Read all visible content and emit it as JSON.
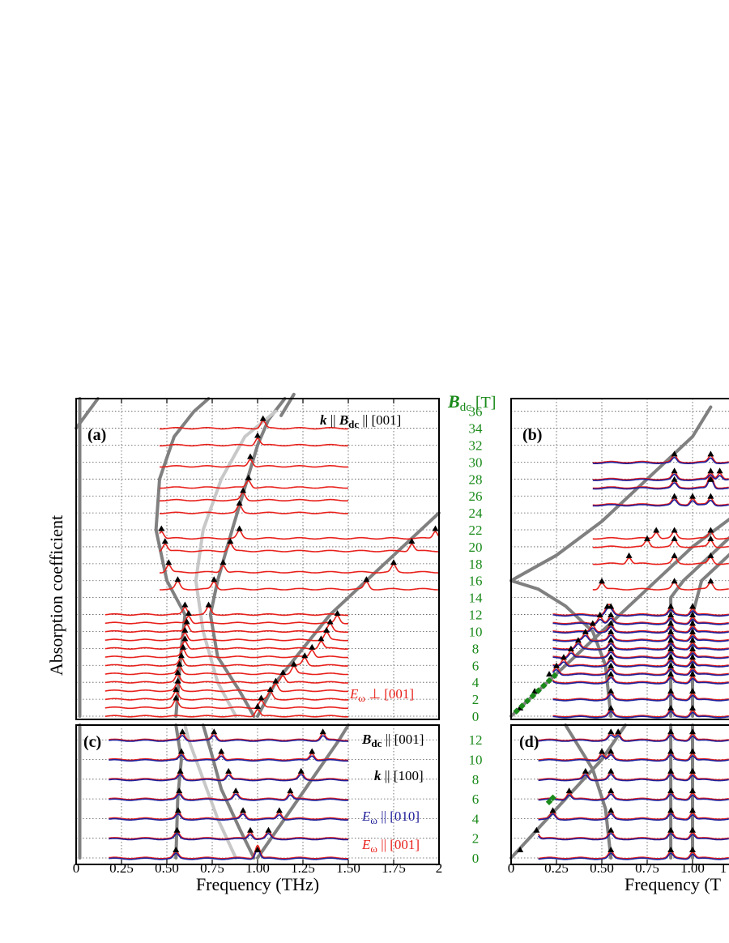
{
  "chart_data": [
    {
      "panel": "(a)",
      "type": "line",
      "annotations": {
        "top_right_k": "k",
        "top_right_mid": " || ",
        "top_right_B": "B",
        "top_right_sub": "dc",
        "top_right_dir": " || [001]",
        "bottom_E": "E",
        "bottom_sub": "ω",
        "bottom_dir": " ⊥ [001]"
      },
      "offsets_T": [
        0,
        1,
        2,
        3,
        4,
        5,
        6,
        7,
        8,
        9,
        10,
        11,
        12,
        15,
        17,
        19.5,
        21,
        24,
        25.5,
        27,
        29.5,
        32,
        34
      ],
      "peaks_THz": [
        [
          1.0
        ],
        [
          0.55,
          1.02
        ],
        [
          0.55,
          1.07
        ],
        [
          0.56,
          1.1
        ],
        [
          0.56,
          1.14
        ],
        [
          0.57,
          1.2
        ],
        [
          0.58,
          1.26
        ],
        [
          0.59,
          1.3
        ],
        [
          0.6,
          1.35
        ],
        [
          0.6,
          1.38
        ],
        [
          0.61,
          1.4
        ],
        [
          0.62,
          1.44
        ],
        [
          0.6,
          0.73
        ],
        [
          0.56,
          0.76,
          1.6
        ],
        [
          0.51,
          0.81,
          1.75
        ],
        [
          0.49,
          0.85,
          1.85
        ],
        [
          0.47,
          0.9,
          1.98
        ],
        [
          0.9
        ],
        [
          0.92
        ],
        [
          0.95
        ],
        [
          0.96
        ],
        [
          1.0
        ],
        [
          1.03
        ]
      ],
      "xlim": [
        0,
        2
      ]
    },
    {
      "panel": "(b)",
      "type": "line",
      "offsets_T": [
        0,
        2,
        4,
        5,
        6,
        7,
        8,
        9,
        10,
        11,
        12,
        15,
        18,
        20,
        21,
        25,
        27,
        28,
        30
      ],
      "xlim": [
        0,
        1.25
      ]
    },
    {
      "panel": "(c)",
      "type": "line",
      "annotations": {
        "line1_B": "B",
        "line1_sub": "dc",
        "line1_dir": " || [001]",
        "line2_k": "k",
        "line2_dir": "  || [100]",
        "line3_E": "E",
        "line3_sub": "ω",
        "line3_dir": " || [010]",
        "line4_E": "E",
        "line4_sub": "ω",
        "line4_dir": " || [001]"
      },
      "offsets_T": [
        0,
        2,
        4,
        6,
        8,
        10,
        12
      ],
      "xlim": [
        0,
        2
      ]
    },
    {
      "panel": "(d)",
      "type": "line",
      "offsets_T": [
        0,
        2,
        4,
        6,
        8,
        10,
        12
      ],
      "xlim": [
        0,
        1.25
      ]
    }
  ],
  "labels": {
    "panel_a": "(a)",
    "panel_b": "(b)",
    "panel_c": "(c)",
    "panel_d": "(d)",
    "ylabel": "Absorption coefficient",
    "xlabel_left": "Frequency (THz)",
    "xlabel_right": "Frequency (T",
    "bdc_B": "B",
    "bdc_sub": "dc",
    "bdc_unit": " [T]"
  },
  "x_ticks_left": [
    "0",
    "0.25",
    "0.50",
    "0.75",
    "1.00",
    "1.25",
    "1.50",
    "1.75",
    "2"
  ],
  "x_ticks_right": [
    "0",
    "0.25",
    "0.50",
    "0.75",
    "1.00",
    "1"
  ],
  "b_ticks_top": [
    "36",
    "34",
    "32",
    "30",
    "28",
    "26",
    "24",
    "22",
    "20",
    "18",
    "16",
    "14",
    "12",
    "10",
    "8",
    "6",
    "4",
    "2",
    "0"
  ],
  "b_ticks_bottom": [
    "12",
    "10",
    "8",
    "6",
    "4",
    "2",
    "0"
  ],
  "colors": {
    "e_perp_or_parallel_001": "#e8211c",
    "e_parallel_010": "#1f1f9a",
    "bdc_axis": "#1a8a1a",
    "theory_line": "#808080",
    "theory_line_light": "#c8c8c8",
    "data_marker": "#000000"
  }
}
